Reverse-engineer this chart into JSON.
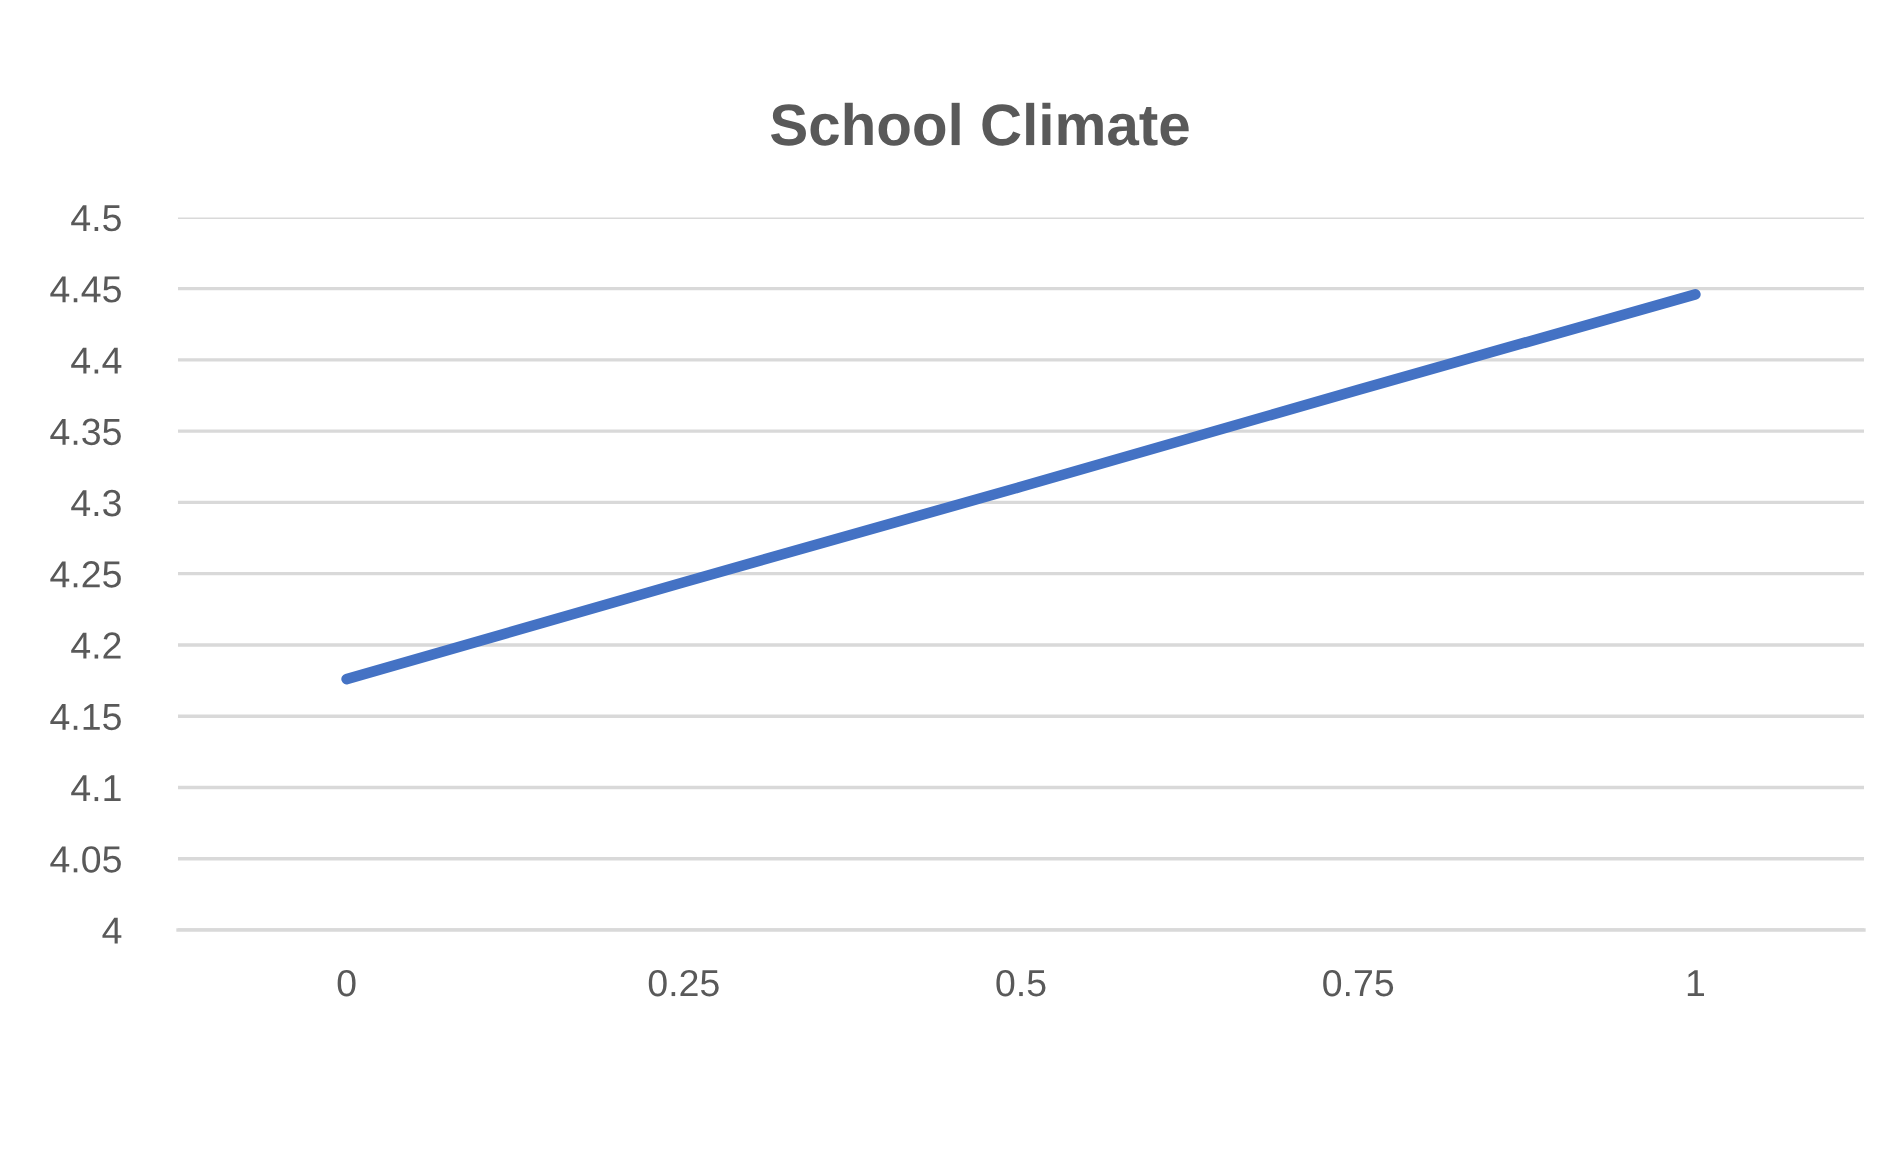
{
  "chart_data": {
    "type": "line",
    "title": "School Climate",
    "categories": [
      "0",
      "0.25",
      "0.5",
      "0.75",
      "1"
    ],
    "series": [
      {
        "color": "#4472c4",
        "values": [
          4.176,
          4.244,
          4.311,
          4.379,
          4.446
        ]
      }
    ],
    "ylim": [
      4,
      4.5
    ],
    "yticks": [
      4,
      4.05,
      4.1,
      4.15,
      4.2,
      4.25,
      4.3,
      4.35,
      4.4,
      4.45,
      4.5
    ],
    "grid": "y",
    "marker": "none",
    "line_style": "solid"
  }
}
